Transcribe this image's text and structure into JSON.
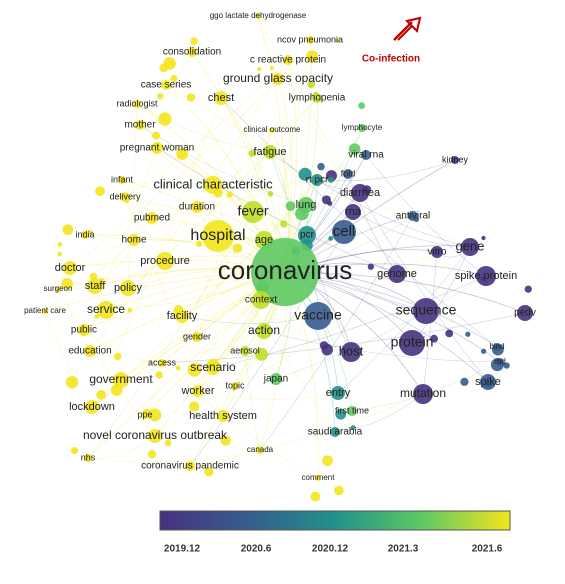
{
  "nodes": [
    {
      "label": "ggo lactate dehydrogenase"
    },
    {
      "label": "ncov pneumonia"
    },
    {
      "label": "consolidation"
    },
    {
      "label": "c reactive protein"
    },
    {
      "label": "case series"
    },
    {
      "label": "ground glass opacity"
    },
    {
      "label": "radiologist"
    },
    {
      "label": "chest"
    },
    {
      "label": "lymphopenia"
    },
    {
      "label": "mother"
    },
    {
      "label": "clinical outcome"
    },
    {
      "label": "lymphocyte"
    },
    {
      "label": "pregnant woman"
    },
    {
      "label": "fatigue"
    },
    {
      "label": "viral rna"
    },
    {
      "label": "kidney"
    },
    {
      "label": "infant"
    },
    {
      "label": "clinical characteristic"
    },
    {
      "label": "rt pcr"
    },
    {
      "label": "fold"
    },
    {
      "label": "diarrhea"
    },
    {
      "label": "delivery"
    },
    {
      "label": "duration"
    },
    {
      "label": "fever"
    },
    {
      "label": "lung"
    },
    {
      "label": "rna"
    },
    {
      "label": "antiviral"
    },
    {
      "label": "pubmed"
    },
    {
      "label": "india"
    },
    {
      "label": "home"
    },
    {
      "label": "hospital"
    },
    {
      "label": "age"
    },
    {
      "label": "pcr"
    },
    {
      "label": "cell"
    },
    {
      "label": "vitro"
    },
    {
      "label": "gene"
    },
    {
      "label": "procedure"
    },
    {
      "label": "coronavirus"
    },
    {
      "label": "genome"
    },
    {
      "label": "spike protein"
    },
    {
      "label": "doctor"
    },
    {
      "label": "staff"
    },
    {
      "label": "policy"
    },
    {
      "label": "surgeon"
    },
    {
      "label": "context"
    },
    {
      "label": "patient care"
    },
    {
      "label": "service"
    },
    {
      "label": "facility"
    },
    {
      "label": "vaccine"
    },
    {
      "label": "sequence"
    },
    {
      "label": "pedv"
    },
    {
      "label": "public"
    },
    {
      "label": "gender"
    },
    {
      "label": "action"
    },
    {
      "label": "protein"
    },
    {
      "label": "bind"
    },
    {
      "label": "education"
    },
    {
      "label": "host"
    },
    {
      "label": "rbd"
    },
    {
      "label": "access"
    },
    {
      "label": "aerosol"
    },
    {
      "label": "scenario"
    },
    {
      "label": "government"
    },
    {
      "label": "japan"
    },
    {
      "label": "topic"
    },
    {
      "label": "worker"
    },
    {
      "label": "entry"
    },
    {
      "label": "mutation"
    },
    {
      "label": "spike"
    },
    {
      "label": "lockdown"
    },
    {
      "label": "first time"
    },
    {
      "label": "ppe"
    },
    {
      "label": "health system"
    },
    {
      "label": "novel coronavirus outbreak"
    },
    {
      "label": "saudi arabia"
    },
    {
      "label": "canada"
    },
    {
      "label": "nhs"
    },
    {
      "label": "coronavirus pandemic"
    },
    {
      "label": "comment"
    }
  ],
  "annotation": "Co-infection",
  "colorbar": {
    "ticks": [
      "2019.12",
      "2020.6",
      "2020.12",
      "2021.3",
      "2021.6"
    ]
  }
}
